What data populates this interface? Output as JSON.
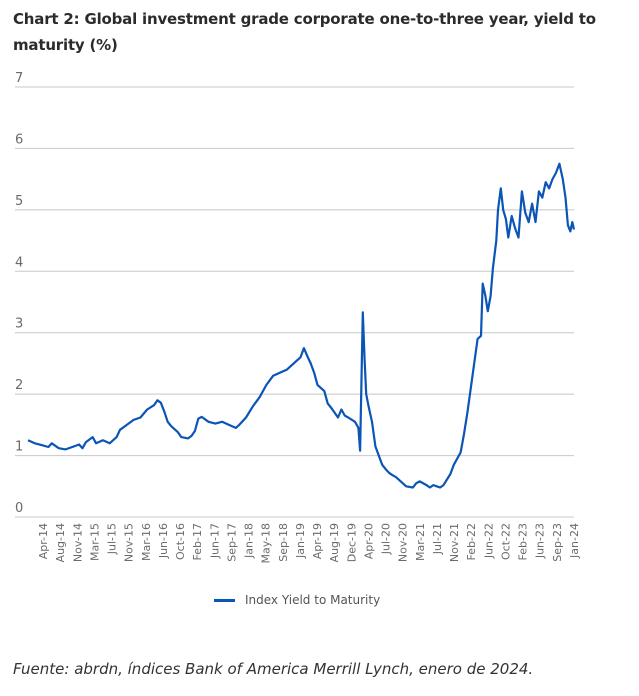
{
  "chart_data": {
    "type": "line",
    "title": "Chart 2: Global investment grade corporate one-to-three year, yield to maturity (%)",
    "xlabel": "",
    "ylabel": "",
    "ylim": [
      0,
      7
    ],
    "yticks": [
      "0",
      "1",
      "2",
      "3",
      "4",
      "5",
      "6",
      "7"
    ],
    "grid": true,
    "legend_position": "bottom-center",
    "x_tick_labels": [
      "Apr-14",
      "Aug-14",
      "Nov-14",
      "Mar-15",
      "Jul-15",
      "Nov-15",
      "Mar-16",
      "Jun-16",
      "Oct-16",
      "Feb-17",
      "Jun-17",
      "Sep-17",
      "Jan-18",
      "May-18",
      "Sep-18",
      "Jan-19",
      "Apr-19",
      "Aug-19",
      "Dec-19",
      "Apr-20",
      "Jul-20",
      "Nov-20",
      "Mar-21",
      "Jul-21",
      "Nov-21",
      "Feb-22",
      "Jun-22",
      "Oct-22",
      "Feb-23",
      "Jun-23",
      "Sep-23",
      "Jan-24"
    ],
    "x_range_months": [
      "Apr-14",
      "Jan-24"
    ],
    "series": [
      {
        "name": "Index Yield to Maturity",
        "color": "#0a55b5",
        "points": [
          [
            0,
            1.25
          ],
          [
            2,
            1.2
          ],
          [
            4,
            1.17
          ],
          [
            6,
            1.14
          ],
          [
            7,
            1.2
          ],
          [
            9,
            1.12
          ],
          [
            11,
            1.1
          ],
          [
            13,
            1.14
          ],
          [
            15,
            1.18
          ],
          [
            16,
            1.12
          ],
          [
            17,
            1.22
          ],
          [
            19,
            1.3
          ],
          [
            20,
            1.2
          ],
          [
            22,
            1.25
          ],
          [
            24,
            1.2
          ],
          [
            26,
            1.3
          ],
          [
            27,
            1.42
          ],
          [
            29,
            1.5
          ],
          [
            31,
            1.58
          ],
          [
            33,
            1.62
          ],
          [
            35,
            1.75
          ],
          [
            37,
            1.82
          ],
          [
            38,
            1.9
          ],
          [
            39,
            1.86
          ],
          [
            40,
            1.72
          ],
          [
            41,
            1.55
          ],
          [
            42,
            1.48
          ],
          [
            44,
            1.38
          ],
          [
            45,
            1.3
          ],
          [
            47,
            1.28
          ],
          [
            48,
            1.32
          ],
          [
            49,
            1.4
          ],
          [
            50,
            1.6
          ],
          [
            51,
            1.63
          ],
          [
            53,
            1.55
          ],
          [
            55,
            1.52
          ],
          [
            57,
            1.55
          ],
          [
            59,
            1.5
          ],
          [
            61,
            1.45
          ],
          [
            62,
            1.5
          ],
          [
            64,
            1.62
          ],
          [
            66,
            1.8
          ],
          [
            68,
            1.95
          ],
          [
            70,
            2.15
          ],
          [
            72,
            2.3
          ],
          [
            74,
            2.35
          ],
          [
            76,
            2.4
          ],
          [
            78,
            2.5
          ],
          [
            80,
            2.6
          ],
          [
            81,
            2.75
          ],
          [
            82,
            2.62
          ],
          [
            83,
            2.5
          ],
          [
            84,
            2.35
          ],
          [
            85,
            2.15
          ],
          [
            87,
            2.05
          ],
          [
            88,
            1.85
          ],
          [
            89,
            1.78
          ],
          [
            90,
            1.7
          ],
          [
            91,
            1.62
          ],
          [
            92,
            1.75
          ],
          [
            93,
            1.65
          ],
          [
            94,
            1.62
          ],
          [
            96,
            1.55
          ],
          [
            97,
            1.45
          ],
          [
            97.5,
            1.08
          ],
          [
            98.3,
            3.33
          ],
          [
            98.8,
            2.6
          ],
          [
            99.3,
            2.0
          ],
          [
            100,
            1.8
          ],
          [
            101,
            1.55
          ],
          [
            102,
            1.15
          ],
          [
            103,
            1.0
          ],
          [
            104,
            0.85
          ],
          [
            105,
            0.78
          ],
          [
            106,
            0.72
          ],
          [
            107,
            0.68
          ],
          [
            108,
            0.65
          ],
          [
            110,
            0.55
          ],
          [
            111,
            0.5
          ],
          [
            113,
            0.48
          ],
          [
            114,
            0.55
          ],
          [
            115,
            0.58
          ],
          [
            117,
            0.52
          ],
          [
            118,
            0.48
          ],
          [
            119,
            0.52
          ],
          [
            120,
            0.5
          ],
          [
            121,
            0.48
          ],
          [
            122,
            0.52
          ],
          [
            124,
            0.7
          ],
          [
            125,
            0.85
          ],
          [
            126,
            0.95
          ],
          [
            127,
            1.05
          ],
          [
            128,
            1.35
          ],
          [
            129,
            1.7
          ],
          [
            130,
            2.1
          ],
          [
            131,
            2.5
          ],
          [
            132,
            2.9
          ],
          [
            133,
            2.95
          ],
          [
            133.5,
            3.8
          ],
          [
            134.3,
            3.6
          ],
          [
            135,
            3.35
          ],
          [
            135.8,
            3.6
          ],
          [
            136.5,
            4.05
          ],
          [
            137.5,
            4.5
          ],
          [
            138,
            5.0
          ],
          [
            138.8,
            5.35
          ],
          [
            139.5,
            5.0
          ],
          [
            140.3,
            4.85
          ],
          [
            141,
            4.55
          ],
          [
            142,
            4.9
          ],
          [
            143,
            4.7
          ],
          [
            144,
            4.55
          ],
          [
            145,
            5.3
          ],
          [
            146,
            4.95
          ],
          [
            147,
            4.8
          ],
          [
            148,
            5.1
          ],
          [
            149,
            4.8
          ],
          [
            150,
            5.3
          ],
          [
            151,
            5.2
          ],
          [
            152,
            5.45
          ],
          [
            153,
            5.35
          ],
          [
            154,
            5.5
          ],
          [
            155,
            5.6
          ],
          [
            156,
            5.75
          ],
          [
            157,
            5.5
          ],
          [
            157.8,
            5.2
          ],
          [
            158.5,
            4.75
          ],
          [
            159.2,
            4.65
          ],
          [
            159.8,
            4.8
          ],
          [
            160.3,
            4.68
          ]
        ]
      }
    ]
  },
  "legend": {
    "label": "Index Yield to Maturity"
  },
  "source": "Fuente: abrdn, índices Bank of America Merrill Lynch, enero de 2024."
}
